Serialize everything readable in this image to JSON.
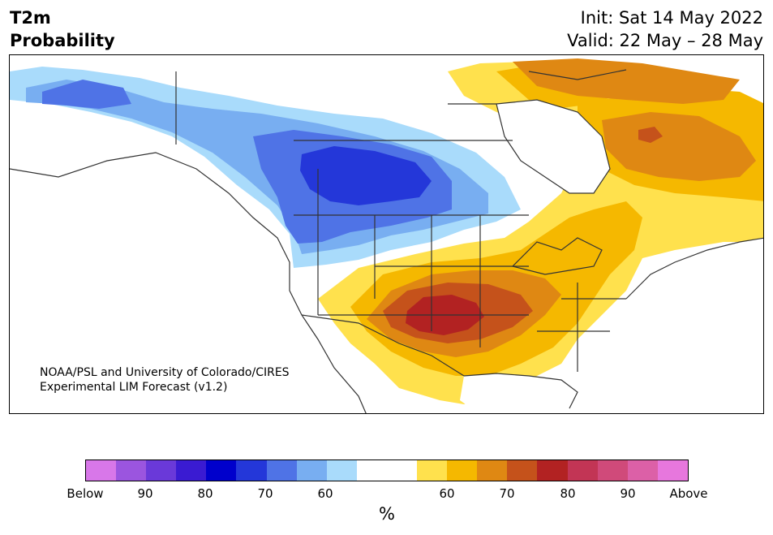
{
  "header": {
    "variable": "T2m",
    "product": "Probability",
    "init": "Init: Sat 14 May 2022",
    "valid": "Valid: 22 May – 28 May"
  },
  "credit": {
    "line1": "NOAA/PSL and University of Colorado/CIRES",
    "line2": "Experimental LIM Forecast (v1.2)"
  },
  "colorbar": {
    "unit": "%",
    "colors": [
      "#d877e9",
      "#9b55df",
      "#6a39d9",
      "#3a1bd2",
      "#0000cc",
      "#2437d9",
      "#4f73e6",
      "#78aef1",
      "#a9dbfb",
      "#ffffff",
      "#ffffff",
      "#ffe14d",
      "#f5b800",
      "#df8813",
      "#c5521b",
      "#b22222",
      "#c23555",
      "#d04a7a",
      "#dc60a7",
      "#e777dd"
    ],
    "ticks": {
      "below": "Below",
      "b90": "90",
      "b80": "80",
      "b70": "70",
      "b60": "60",
      "a60": "60",
      "a70": "70",
      "a80": "80",
      "a90": "90",
      "above": "Above"
    }
  },
  "map": {
    "region": "North America",
    "cold_colors": [
      "#a9dbfb",
      "#78aef1",
      "#4f73e6",
      "#2437d9"
    ],
    "warm_colors": [
      "#ffe14d",
      "#f5b800",
      "#df8813",
      "#c5521b",
      "#b22222"
    ],
    "border_color": "#333333"
  }
}
